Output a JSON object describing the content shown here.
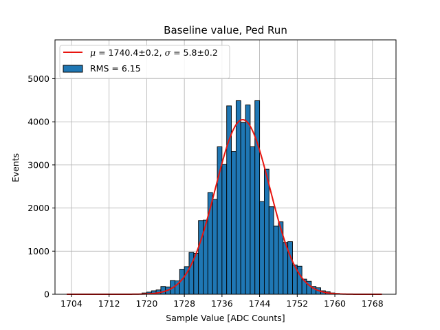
{
  "chart_data": {
    "type": "bar",
    "title": "Baseline value, Ped Run",
    "xlabel": "Sample Value [ADC Counts]",
    "ylabel": "Events",
    "xlim": [
      1700.5,
      1773
    ],
    "ylim": [
      0,
      5900
    ],
    "grid": true,
    "legend_placement": "top-left",
    "x_ticks": [
      1704,
      1712,
      1720,
      1728,
      1736,
      1744,
      1752,
      1760,
      1768
    ],
    "y_ticks": [
      0,
      1000,
      2000,
      3000,
      4000,
      5000
    ],
    "bin_width": 1,
    "histogram": {
      "name": "RMS = 6.15",
      "bin_start": [
        1719,
        1720,
        1721,
        1722,
        1723,
        1724,
        1725,
        1726,
        1727,
        1728,
        1729,
        1730,
        1731,
        1732,
        1733,
        1734,
        1735,
        1736,
        1737,
        1738,
        1739,
        1740,
        1741,
        1742,
        1743,
        1744,
        1745,
        1746,
        1747,
        1748,
        1749,
        1750,
        1751,
        1752,
        1753,
        1754,
        1755,
        1756,
        1757,
        1758,
        1759,
        1760
      ],
      "counts": [
        30,
        50,
        80,
        100,
        180,
        170,
        320,
        310,
        580,
        640,
        970,
        950,
        1710,
        1720,
        2360,
        2200,
        3420,
        3010,
        4370,
        3310,
        4490,
        3980,
        4390,
        3420,
        4490,
        2150,
        2900,
        2030,
        1580,
        1680,
        1200,
        1220,
        680,
        650,
        350,
        300,
        180,
        150,
        80,
        60,
        30,
        20
      ],
      "color": "#1f77b4",
      "edgecolor": "#000000"
    },
    "fit": {
      "name": "$\\mu = 1740.4 \\pm 0.2$, $\\sigma = 5.8 \\pm 0.2$",
      "mu": 1740.4,
      "sigma": 5.8,
      "amplitude": 4050,
      "x_range": [
        1703,
        1770
      ],
      "color": "#e8150f"
    }
  }
}
